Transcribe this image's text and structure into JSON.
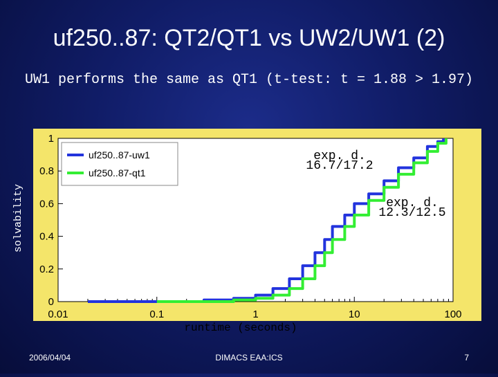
{
  "slide": {
    "title": "uf250..87: QT2/QT1 vs UW2/UW1 (2)",
    "subtitle": "UW1 performs the same as QT1 (t-test: t = 1.88 > 1.97)",
    "footer_date": "2006/04/04",
    "footer_venue": "DIMACS EAA:ICS",
    "page_number": "7"
  },
  "colors": {
    "background": "#101c66",
    "plot_frame": "#f4e56a",
    "plot_area": "#ffffff",
    "series_uw1": "#2233dd",
    "series_qt1": "#33ee33"
  },
  "chart_data": {
    "type": "line",
    "xscale": "log",
    "xlim": [
      0.01,
      100
    ],
    "ylim": [
      0,
      1
    ],
    "xticks": [
      "0.01",
      "0.1",
      "1",
      "10",
      "100"
    ],
    "yticks": [
      "0",
      "0.2",
      "0.4",
      "0.6",
      "0.8",
      "1"
    ],
    "xlabel": "runtime (seconds)",
    "ylabel": "solvability",
    "grid": false,
    "legend_position": "top-left",
    "series": [
      {
        "name": "uf250..87-uw1",
        "color": "#2233dd",
        "x": [
          0.02,
          0.1,
          0.3,
          0.6,
          1.0,
          1.5,
          2.2,
          3.0,
          4.0,
          5.0,
          6.0,
          8.0,
          10.0,
          14.0,
          20.0,
          28.0,
          40.0,
          55.0,
          70.0,
          80.0
        ],
        "y": [
          0.0,
          0.0,
          0.01,
          0.02,
          0.04,
          0.08,
          0.14,
          0.22,
          0.3,
          0.38,
          0.46,
          0.53,
          0.6,
          0.66,
          0.74,
          0.82,
          0.88,
          0.95,
          0.98,
          1.0
        ]
      },
      {
        "name": "uf250..87-qt1",
        "color": "#33ee33",
        "x": [
          0.1,
          0.3,
          0.6,
          1.0,
          1.5,
          2.2,
          3.0,
          4.0,
          5.0,
          6.0,
          8.0,
          10.0,
          14.0,
          20.0,
          28.0,
          40.0,
          55.0,
          70.0,
          85.0
        ],
        "y": [
          0.0,
          0.0,
          0.01,
          0.02,
          0.04,
          0.08,
          0.14,
          0.22,
          0.3,
          0.38,
          0.46,
          0.53,
          0.62,
          0.7,
          0.78,
          0.85,
          0.92,
          0.97,
          1.0
        ]
      }
    ],
    "annotations": [
      {
        "label": "exp. d.",
        "detail": "16.7/17.2",
        "x": 5,
        "y": 0.9
      },
      {
        "label": "exp. d.",
        "detail": "12.3/12.5",
        "x": 30,
        "y": 0.6
      }
    ]
  }
}
